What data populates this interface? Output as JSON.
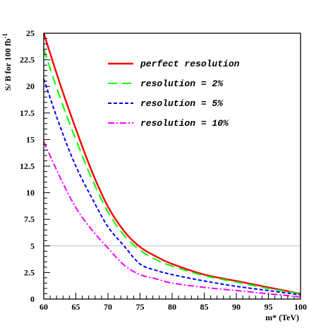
{
  "chart_data": {
    "type": "line",
    "xlabel": "m* (TeV)",
    "ylabel": "S/ B for 100 fb",
    "ylabel_superscript": "-1",
    "xlim": [
      60,
      100
    ],
    "ylim": [
      0,
      25
    ],
    "x_ticks": [
      "60",
      "65",
      "70",
      "75",
      "80",
      "85",
      "90",
      "95",
      "100"
    ],
    "y_ticks": [
      "0",
      "2.5",
      "5",
      "7.5",
      "10",
      "12.5",
      "15",
      "17.5",
      "20",
      "22.5",
      "25"
    ],
    "reference_line_y": 5,
    "legend_position": "top-right",
    "series": [
      {
        "name": "perfect resolution",
        "color": "#ff0000",
        "dash": "solid",
        "x": [
          60,
          62.5,
          65,
          67.5,
          70,
          72.5,
          75,
          77.5,
          80,
          85,
          90,
          95,
          100
        ],
        "y": [
          25.0,
          20.3,
          16.0,
          12.0,
          8.7,
          6.4,
          4.9,
          4.0,
          3.3,
          2.3,
          1.7,
          1.1,
          0.5
        ]
      },
      {
        "name": "resolution = 2%",
        "color": "#00ff00",
        "dash": "long-dash",
        "x": [
          60,
          62.5,
          65,
          67.5,
          70,
          72.5,
          75,
          77.5,
          80,
          85,
          90,
          95,
          100
        ],
        "y": [
          23.5,
          19.0,
          15.0,
          11.3,
          8.2,
          6.0,
          4.6,
          3.7,
          3.1,
          2.2,
          1.6,
          1.0,
          0.5
        ]
      },
      {
        "name": "resolution = 5%",
        "color": "#0000ff",
        "dash": "short-dash",
        "x": [
          60,
          62.5,
          65,
          67.5,
          70,
          72.5,
          75,
          77.5,
          80,
          85,
          90,
          95,
          100
        ],
        "y": [
          20.7,
          16.3,
          12.5,
          9.5,
          6.8,
          5.0,
          3.3,
          2.7,
          2.3,
          1.7,
          1.2,
          0.8,
          0.4
        ]
      },
      {
        "name": "resolution = 10%",
        "color": "#ff00ff",
        "dash": "dash-dot",
        "x": [
          60,
          62.5,
          65,
          67.5,
          70,
          72.5,
          75,
          77.5,
          80,
          85,
          90,
          95,
          100
        ],
        "y": [
          14.8,
          11.5,
          8.6,
          6.5,
          4.8,
          3.2,
          2.3,
          1.9,
          1.5,
          1.1,
          0.8,
          0.5,
          0.2
        ]
      }
    ]
  }
}
